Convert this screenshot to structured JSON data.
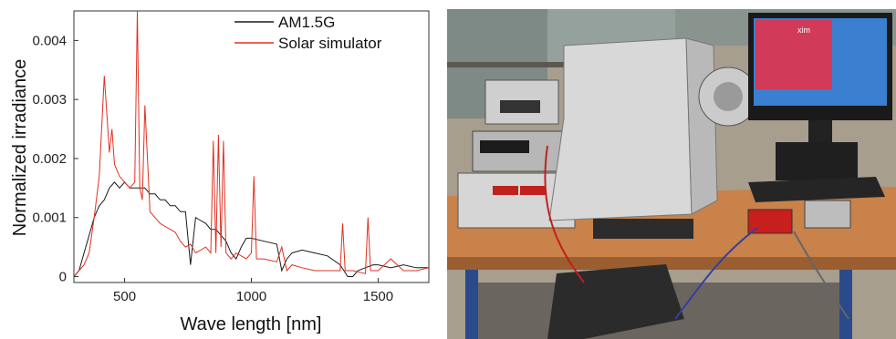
{
  "chart_data": {
    "type": "line",
    "xlabel": "Wave length [nm]",
    "ylabel": "Normalized irradiance",
    "xlim": [
      300,
      1700
    ],
    "ylim": [
      -0.0001,
      0.0045
    ],
    "x_ticks": [
      500,
      1000,
      1500
    ],
    "y_ticks": [
      0,
      0.001,
      0.002,
      0.003,
      0.004
    ],
    "y_tick_labels": [
      "0",
      "0.001",
      "0.002",
      "0.003",
      "0.004"
    ],
    "legend_position": "top-right",
    "grid": false,
    "series": [
      {
        "name": "AM1.5G",
        "color": "#1a1a1a",
        "x": [
          300,
          320,
          340,
          360,
          380,
          400,
          420,
          440,
          460,
          480,
          500,
          520,
          540,
          560,
          580,
          600,
          620,
          640,
          660,
          680,
          700,
          720,
          740,
          760,
          780,
          800,
          820,
          840,
          860,
          880,
          900,
          920,
          940,
          960,
          980,
          1000,
          1050,
          1100,
          1120,
          1140,
          1160,
          1200,
          1250,
          1300,
          1350,
          1380,
          1400,
          1420,
          1450,
          1480,
          1500,
          1550,
          1600,
          1650,
          1700
        ],
        "y": [
          0.0,
          0.0001,
          0.0004,
          0.0007,
          0.001,
          0.0012,
          0.0013,
          0.0015,
          0.0016,
          0.0015,
          0.0016,
          0.0015,
          0.0015,
          0.0015,
          0.0015,
          0.0014,
          0.0014,
          0.0013,
          0.0013,
          0.0012,
          0.0012,
          0.0011,
          0.0011,
          0.0002,
          0.001,
          0.00095,
          0.0009,
          0.0008,
          0.0008,
          0.0007,
          0.0006,
          0.0004,
          0.0003,
          0.0005,
          0.00065,
          0.00065,
          0.0006,
          0.00055,
          0.0001,
          0.0003,
          0.0004,
          0.00045,
          0.0004,
          0.00035,
          0.0002,
          0.0,
          0.0,
          0.0001,
          0.00015,
          0.0002,
          0.0002,
          0.00015,
          0.0002,
          0.00015,
          0.00015
        ]
      },
      {
        "name": "Solar simulator",
        "color": "#e03020",
        "x": [
          300,
          320,
          340,
          360,
          380,
          400,
          420,
          440,
          450,
          460,
          480,
          500,
          520,
          540,
          550,
          560,
          570,
          580,
          600,
          620,
          640,
          660,
          680,
          700,
          720,
          740,
          760,
          780,
          800,
          820,
          840,
          850,
          860,
          870,
          880,
          890,
          900,
          920,
          940,
          960,
          980,
          1000,
          1010,
          1020,
          1050,
          1100,
          1120,
          1140,
          1160,
          1200,
          1250,
          1300,
          1350,
          1360,
          1370,
          1400,
          1450,
          1460,
          1470,
          1500,
          1550,
          1600,
          1650,
          1700
        ],
        "y": [
          0.0,
          0.0001,
          0.0002,
          0.0004,
          0.001,
          0.0017,
          0.0034,
          0.0021,
          0.0025,
          0.0019,
          0.0017,
          0.0016,
          0.0015,
          0.0016,
          0.0045,
          0.0015,
          0.0013,
          0.0029,
          0.0011,
          0.001,
          0.0009,
          0.00085,
          0.0008,
          0.00075,
          0.0006,
          0.0005,
          0.00055,
          0.0004,
          0.00045,
          0.0005,
          0.0004,
          0.0023,
          0.0004,
          0.0024,
          0.0005,
          0.0023,
          0.0004,
          0.0003,
          0.0004,
          0.00035,
          0.0003,
          0.0004,
          0.0017,
          0.0003,
          0.0003,
          0.00025,
          0.0005,
          0.0001,
          0.0002,
          0.00015,
          0.0001,
          0.0001,
          0.0001,
          0.0009,
          0.0001,
          0.0001,
          5e-05,
          0.001,
          0.0001,
          0.0001,
          0.0003,
          0.0001,
          0.0001,
          0.00015
        ]
      }
    ]
  },
  "photo": {
    "caption": "",
    "display_top_text": "xim"
  },
  "colors": {
    "table_wood": "#c8824a",
    "device_grey": "#d8d8d8",
    "frame_blue": "#2a4a8c",
    "monitor_screen": "#d23a5a",
    "background_wall": "#b9b0a0"
  }
}
